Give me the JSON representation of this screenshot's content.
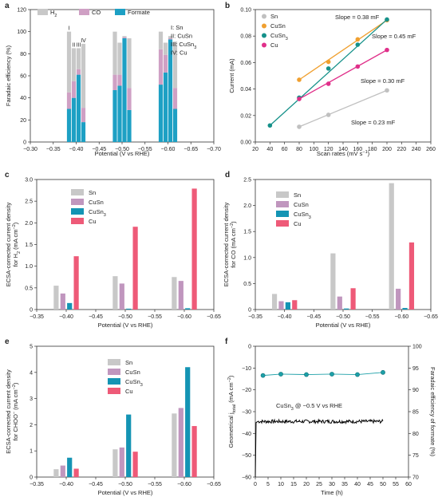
{
  "chart_data": [
    {
      "panel": "a",
      "type": "bar",
      "stacked": true,
      "xlabel": "Potential (V vs RHE)",
      "ylabel": "Faradaic efficiency (%)",
      "xlim": [
        -0.3,
        -0.7
      ],
      "ylim": [
        0,
        120
      ],
      "xticks": [
        "−0.30",
        "−0.35",
        "−0.40",
        "−0.45",
        "−0.50",
        "−0.55",
        "−0.60",
        "−0.65",
        "−0.70"
      ],
      "yticks": [
        "0",
        "20",
        "40",
        "60",
        "80",
        "100",
        "120"
      ],
      "legend": [
        "H2",
        "CO",
        "Formate"
      ],
      "legend_position": "top-left",
      "catalyst_key": [
        "I: Sn",
        "II: CuSn",
        "III: CuSn3",
        "IV: Cu"
      ],
      "group_labels": [
        "I",
        "II",
        "III",
        "IV"
      ],
      "colors": {
        "H2": "#c8c8c8",
        "CO": "#cfa0c4",
        "Formate": "#1da0c4"
      },
      "groups": [
        {
          "potential": -0.4,
          "bars": [
            {
              "catalyst": "Sn",
              "formate": 30,
              "co": 15,
              "h2": 55
            },
            {
              "catalyst": "CuSn",
              "formate": 40,
              "co": 15,
              "h2": 30
            },
            {
              "catalyst": "CuSn3",
              "formate": 61,
              "co": 5,
              "h2": 19
            },
            {
              "catalyst": "Cu",
              "formate": 18,
              "co": 13,
              "h2": 58
            }
          ]
        },
        {
          "potential": -0.5,
          "bars": [
            {
              "catalyst": "Sn",
              "formate": 47,
              "co": 14,
              "h2": 39
            },
            {
              "catalyst": "CuSn",
              "formate": 51,
              "co": 10,
              "h2": 29
            },
            {
              "catalyst": "CuSn3",
              "formate": 94,
              "co": 1,
              "h2": 1
            },
            {
              "catalyst": "Cu",
              "formate": 29,
              "co": 20,
              "h2": 45
            }
          ]
        },
        {
          "potential": -0.6,
          "bars": [
            {
              "catalyst": "Sn",
              "formate": 52,
              "co": 32,
              "h2": 16
            },
            {
              "catalyst": "CuSn",
              "formate": 63,
              "co": 16,
              "h2": 11
            },
            {
              "catalyst": "CuSn3",
              "formate": 93,
              "co": 1,
              "h2": 2
            },
            {
              "catalyst": "Cu",
              "formate": 30,
              "co": 19,
              "h2": 42
            }
          ]
        }
      ]
    },
    {
      "panel": "b",
      "type": "scatter",
      "xlabel": "Scan rates (mV s−1)",
      "ylabel": "Current (mA)",
      "xlim": [
        20,
        260
      ],
      "ylim": [
        0,
        0.1
      ],
      "xticks": [
        "20",
        "40",
        "60",
        "80",
        "100",
        "120",
        "140",
        "160",
        "180",
        "200",
        "220",
        "240",
        "260"
      ],
      "yticks": [
        "0.00",
        "0.02",
        "0.04",
        "0.06",
        "0.08",
        "0.10"
      ],
      "legend_position": "top-left",
      "series": [
        {
          "name": "Sn",
          "color": "#c0c0c0",
          "x": [
            80,
            120,
            200
          ],
          "y": [
            0.0115,
            0.0205,
            0.039
          ]
        },
        {
          "name": "CuSn",
          "color": "#f0a030",
          "x": [
            80,
            120,
            160,
            200
          ],
          "y": [
            0.047,
            0.0605,
            0.0775,
            0.092
          ]
        },
        {
          "name": "CuSn3",
          "color": "#15918a",
          "x": [
            40,
            80,
            120,
            160,
            200
          ],
          "y": [
            0.0125,
            0.0335,
            0.0555,
            0.0735,
            0.0925
          ]
        },
        {
          "name": "Cu",
          "color": "#e0308a",
          "x": [
            80,
            120,
            160,
            200
          ],
          "y": [
            0.0325,
            0.044,
            0.057,
            0.0695
          ]
        }
      ],
      "annotations": [
        "Slope = 0.38 mF",
        "Slope = 0.45 mF",
        "Slope = 0.30 mF",
        "Slope = 0.23 mF"
      ]
    },
    {
      "panel": "c",
      "type": "bar",
      "xlabel": "Potential (V vs RHE)",
      "ylabel_lines": [
        "ECSA-corrected current density",
        "for H2 (mA cm−2)"
      ],
      "xlim": [
        -0.35,
        -0.65
      ],
      "ylim": [
        0,
        3.0
      ],
      "xticks": [
        "−0.35",
        "−0.40",
        "−0.45",
        "−0.50",
        "−0.55",
        "−0.60",
        "−0.65"
      ],
      "yticks": [
        "0",
        "0.5",
        "1.0",
        "1.5",
        "2.0",
        "2.5",
        "3.0"
      ],
      "legend_position": "top-left",
      "categories": [
        "-0.40",
        "-0.50",
        "-0.60"
      ],
      "series": [
        {
          "name": "Sn",
          "color": "#c8c8c8",
          "values": [
            0.55,
            0.77,
            0.75
          ]
        },
        {
          "name": "CuSn",
          "color": "#c096be",
          "values": [
            0.37,
            0.6,
            0.66
          ]
        },
        {
          "name": "CuSn3",
          "color": "#1494b4",
          "values": [
            0.15,
            0.02,
            0.03
          ]
        },
        {
          "name": "Cu",
          "color": "#ee5a78",
          "values": [
            1.23,
            1.91,
            2.79
          ]
        }
      ]
    },
    {
      "panel": "d",
      "type": "bar",
      "xlabel": "Potential (V vs RHE)",
      "ylabel_lines": [
        "ECSA-corrected current density",
        "for CO (mA cm−2)"
      ],
      "xlim": [
        -0.35,
        -0.65
      ],
      "ylim": [
        0,
        2.5
      ],
      "xticks": [
        "−0.35",
        "−0.40",
        "−0.45",
        "−0.50",
        "−0.55",
        "−0.60",
        "−0.65"
      ],
      "yticks": [
        "0",
        "0.5",
        "1.0",
        "1.5",
        "2.0",
        "2.5"
      ],
      "legend_position": "top-right",
      "categories": [
        "-0.40",
        "-0.50",
        "-0.60"
      ],
      "series": [
        {
          "name": "Sn",
          "color": "#c8c8c8",
          "values": [
            0.3,
            1.08,
            2.43
          ]
        },
        {
          "name": "CuSn",
          "color": "#c096be",
          "values": [
            0.16,
            0.25,
            0.4
          ]
        },
        {
          "name": "CuSn3",
          "color": "#1494b4",
          "values": [
            0.14,
            0.02,
            0.03
          ]
        },
        {
          "name": "Cu",
          "color": "#ee5a78",
          "values": [
            0.18,
            0.41,
            1.29
          ]
        }
      ]
    },
    {
      "panel": "e",
      "type": "bar",
      "xlabel": "Potential (V vs RHE)",
      "ylabel_lines": [
        "ECSA-corrected current density",
        "for CHOO− (mA cm−2)"
      ],
      "xlim": [
        -0.35,
        -0.65
      ],
      "ylim": [
        0,
        5
      ],
      "xticks": [
        "−0.35",
        "−0.40",
        "−0.45",
        "−0.50",
        "−0.55",
        "−0.60",
        "−0.65"
      ],
      "yticks": [
        "0",
        "1",
        "2",
        "3",
        "4",
        "5"
      ],
      "legend_position": "top-center",
      "categories": [
        "-0.40",
        "-0.50",
        "-0.60"
      ],
      "series": [
        {
          "name": "Sn",
          "color": "#c8c8c8",
          "values": [
            0.3,
            1.06,
            2.43
          ]
        },
        {
          "name": "CuSn",
          "color": "#c096be",
          "values": [
            0.44,
            1.13,
            2.64
          ]
        },
        {
          "name": "CuSn3",
          "color": "#1494b4",
          "values": [
            0.74,
            2.39,
            4.2
          ]
        },
        {
          "name": "Cu",
          "color": "#ee5a78",
          "values": [
            0.32,
            0.97,
            1.95
          ]
        }
      ]
    },
    {
      "panel": "f",
      "type": "line",
      "xlabel": "Time (h)",
      "ylabel_left": "Geometrical jtotal (mA cm−2)",
      "ylabel_right": "Faradaic efficiency of formate (%)",
      "xlim": [
        0,
        60
      ],
      "ylim_left": [
        -60,
        0
      ],
      "ylim_right": [
        70,
        100
      ],
      "xticks": [
        "0",
        "5",
        "10",
        "15",
        "20",
        "25",
        "30",
        "35",
        "40",
        "45",
        "50",
        "55",
        "60"
      ],
      "yticks_left": [
        "−60",
        "−50",
        "−40",
        "−30",
        "−20",
        "−10",
        "0"
      ],
      "yticks_right": [
        "70",
        "75",
        "80",
        "85",
        "90",
        "95",
        "100"
      ],
      "annotation": "CuSn3 @ −0.5 V vs RHE",
      "colors": {
        "current": "#000000",
        "fe": "#1da0a8"
      },
      "current": {
        "x": [
          0,
          0.3,
          1,
          50
        ],
        "y": [
          -60,
          -35,
          -34.5,
          -34.5
        ]
      },
      "fe": {
        "x": [
          3,
          10,
          20,
          30,
          40,
          50
        ],
        "y": [
          93.3,
          93.6,
          93.5,
          93.6,
          93.5,
          94
        ]
      }
    }
  ]
}
